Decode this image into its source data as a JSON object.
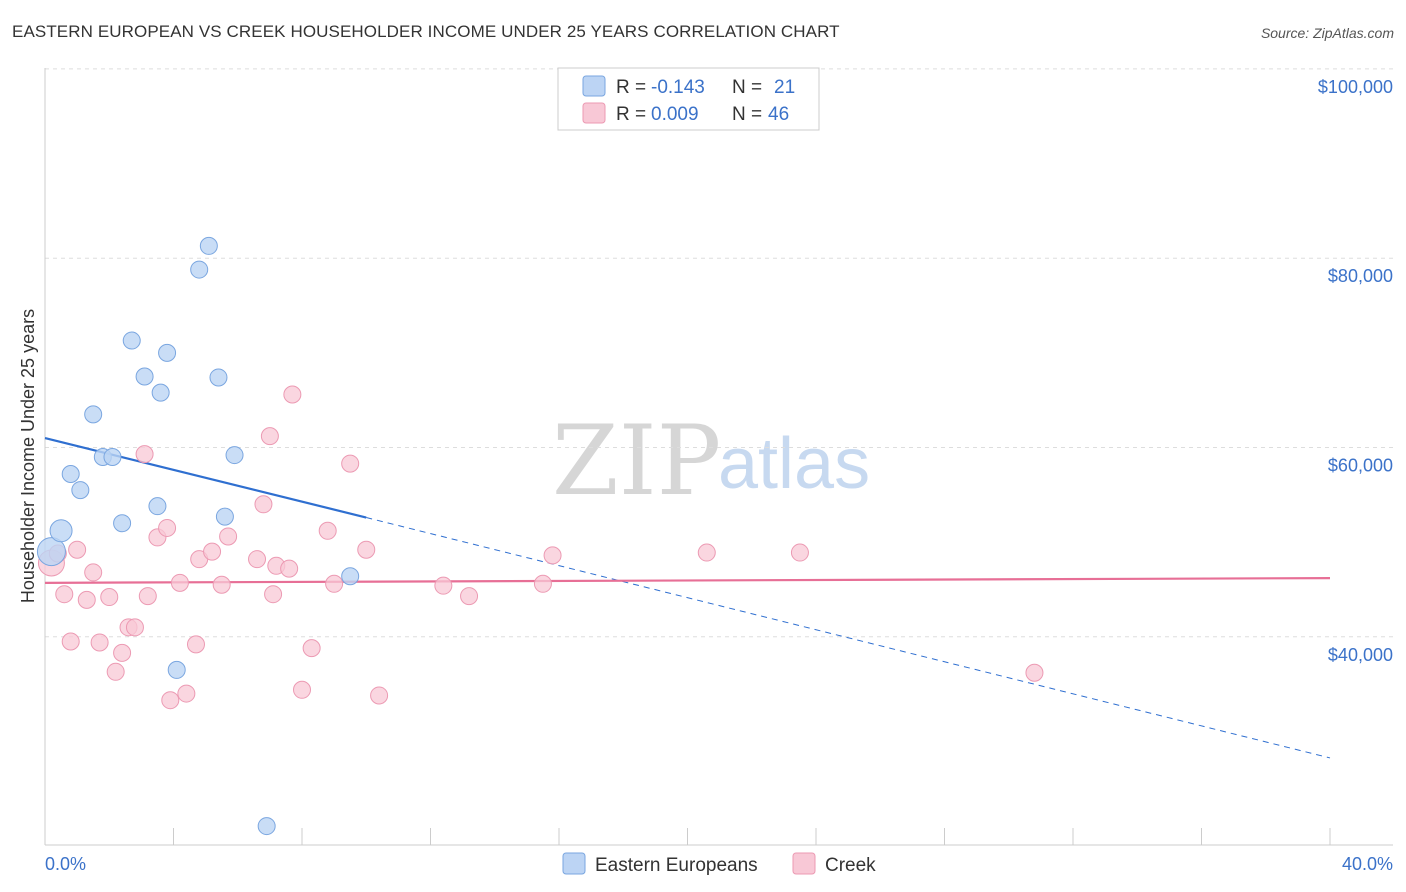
{
  "header": {
    "title": "EASTERN EUROPEAN VS CREEK HOUSEHOLDER INCOME UNDER 25 YEARS CORRELATION CHART",
    "source": "Source: ZipAtlas.com"
  },
  "watermark": {
    "zip": "ZIP",
    "atlas": "atlas"
  },
  "legend": {
    "rows": [
      {
        "r_label": "R =",
        "r_value": "-0.143",
        "n_label": "N =",
        "n_value": "21",
        "color": "#a9c8f0"
      },
      {
        "r_label": "R =",
        "r_value": "0.009",
        "n_label": "N =",
        "n_value": "46",
        "color": "#f5b8c8"
      }
    ]
  },
  "colors": {
    "blue_fill": "#bcd4f4",
    "blue_stroke": "#7aa6e0",
    "blue_line": "#2f6fd0",
    "pink_fill": "#f8c8d6",
    "pink_stroke": "#ec9ab3",
    "pink_line": "#e76f96"
  },
  "chart_data": {
    "type": "scatter",
    "title": "EASTERN EUROPEAN VS CREEK HOUSEHOLDER INCOME UNDER 25 YEARS CORRELATION CHART",
    "xlabel": "",
    "ylabel": "Householder Income Under 25 years",
    "xlim": [
      0,
      40
    ],
    "ylim": [
      18000,
      102000
    ],
    "x_tick_labels": [
      "0.0%",
      "40.0%"
    ],
    "y_ticks": [
      {
        "value": 40000,
        "label": "$40,000"
      },
      {
        "value": 60000,
        "label": "$60,000"
      },
      {
        "value": 80000,
        "label": "$80,000"
      },
      {
        "value": 100000,
        "label": "$100,000"
      }
    ],
    "series": [
      {
        "name": "Eastern Europeans",
        "color": "#a9c8f0",
        "points": [
          [
            0.2,
            49000
          ],
          [
            0.5,
            51200
          ],
          [
            0.8,
            57200
          ],
          [
            1.1,
            55500
          ],
          [
            1.5,
            63500
          ],
          [
            1.8,
            59000
          ],
          [
            2.1,
            59000
          ],
          [
            2.4,
            52000
          ],
          [
            2.7,
            71300
          ],
          [
            3.1,
            67500
          ],
          [
            3.5,
            53800
          ],
          [
            3.6,
            65800
          ],
          [
            3.8,
            70000
          ],
          [
            4.1,
            36500
          ],
          [
            4.8,
            78800
          ],
          [
            5.1,
            81300
          ],
          [
            5.4,
            67400
          ],
          [
            5.6,
            52700
          ],
          [
            5.9,
            59200
          ],
          [
            6.9,
            20000
          ],
          [
            9.5,
            46400
          ]
        ],
        "trend": {
          "x0": 0,
          "y0": 61000,
          "x1": 10,
          "y1": 52600,
          "dash_x1": 40,
          "dash_y1": 27200
        }
      },
      {
        "name": "Creek",
        "color": "#f5b8c8",
        "points": [
          [
            0.2,
            47800
          ],
          [
            0.4,
            48800
          ],
          [
            0.6,
            44500
          ],
          [
            0.8,
            39500
          ],
          [
            1.0,
            49200
          ],
          [
            1.3,
            43900
          ],
          [
            1.5,
            46800
          ],
          [
            1.7,
            39400
          ],
          [
            2.0,
            44200
          ],
          [
            2.2,
            36300
          ],
          [
            2.4,
            38300
          ],
          [
            2.6,
            41000
          ],
          [
            2.8,
            41000
          ],
          [
            3.1,
            59300
          ],
          [
            3.2,
            44300
          ],
          [
            3.5,
            50500
          ],
          [
            3.8,
            51500
          ],
          [
            3.9,
            33300
          ],
          [
            4.2,
            45700
          ],
          [
            4.4,
            34000
          ],
          [
            4.7,
            39200
          ],
          [
            4.8,
            48200
          ],
          [
            5.2,
            49000
          ],
          [
            5.5,
            45500
          ],
          [
            5.7,
            50600
          ],
          [
            6.6,
            48200
          ],
          [
            6.8,
            54000
          ],
          [
            7.0,
            61200
          ],
          [
            7.1,
            44500
          ],
          [
            7.2,
            47500
          ],
          [
            7.6,
            47200
          ],
          [
            7.7,
            65600
          ],
          [
            8.0,
            34400
          ],
          [
            8.3,
            38800
          ],
          [
            8.8,
            51200
          ],
          [
            9.0,
            45600
          ],
          [
            9.5,
            58300
          ],
          [
            10.0,
            49200
          ],
          [
            10.4,
            33800
          ],
          [
            12.4,
            45400
          ],
          [
            13.2,
            44300
          ],
          [
            15.5,
            45600
          ],
          [
            15.8,
            48600
          ],
          [
            20.6,
            48900
          ],
          [
            23.5,
            48900
          ],
          [
            30.8,
            36200
          ]
        ],
        "trend": {
          "x0": 0,
          "y0": 45700,
          "x1": 40,
          "y1": 46200
        }
      }
    ]
  }
}
